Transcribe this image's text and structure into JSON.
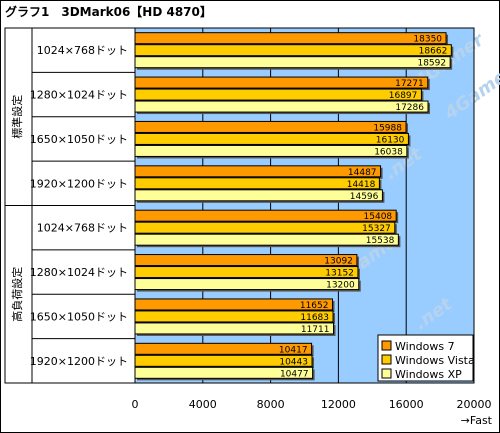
{
  "chart_data": {
    "type": "bar",
    "orientation": "horizontal",
    "title": "グラフ1　3DMark06【HD 4870】",
    "groups": [
      "標準設定",
      "高負荷設定"
    ],
    "categories": [
      "1024×768ドット",
      "1280×1024ドット",
      "1650×1050ドット",
      "1920×1200ドット",
      "1024×768ドット",
      "1280×1024ドット",
      "1650×1050ドット",
      "1920×1200ドット"
    ],
    "series": [
      {
        "name": "Windows 7",
        "color": "#ff9900",
        "values": [
          18350,
          17271,
          15988,
          14487,
          15408,
          13092,
          11652,
          10417
        ]
      },
      {
        "name": "Windows Vista",
        "color": "#ffcc00",
        "values": [
          18662,
          16897,
          16130,
          14418,
          15327,
          13152,
          11683,
          10443
        ]
      },
      {
        "name": "Windows XP",
        "color": "#ffff99",
        "values": [
          18592,
          17286,
          16038,
          14596,
          15538,
          13200,
          11711,
          10477
        ]
      }
    ],
    "xticks": [
      "0",
      "4000",
      "8000",
      "12000",
      "16000",
      "20000"
    ],
    "xlim": [
      0,
      20000
    ],
    "xlabel": "→Fast",
    "plot_background": "#99ccff",
    "legend_position": "bottom-right",
    "watermark": "4Gamer.net"
  }
}
